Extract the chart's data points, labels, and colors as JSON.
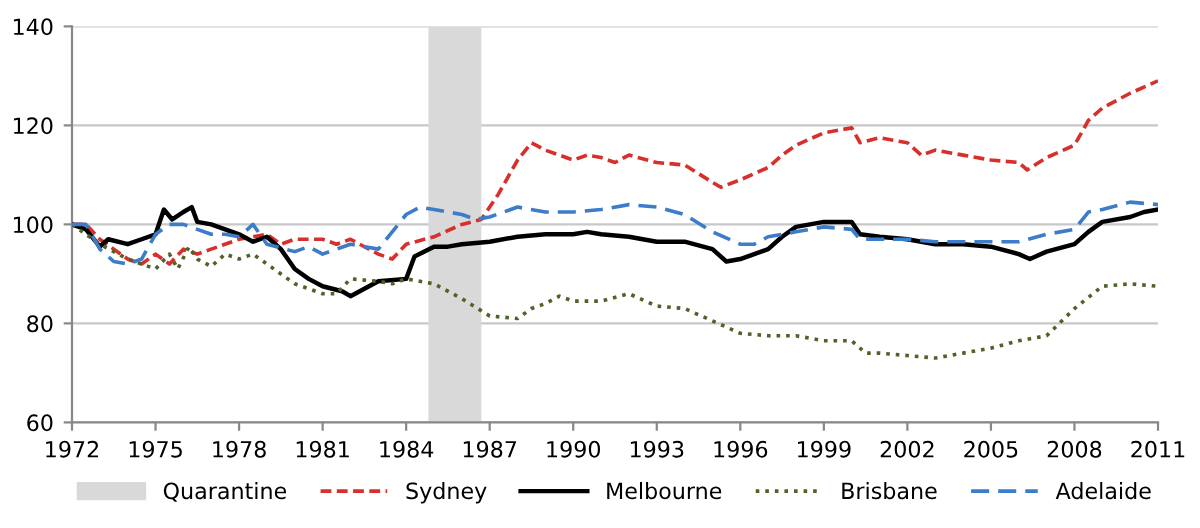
{
  "chart_data": {
    "type": "line",
    "xlim": [
      1972,
      2011
    ],
    "xticks": [
      1972,
      1975,
      1978,
      1981,
      1984,
      1987,
      1990,
      1993,
      1996,
      1999,
      2002,
      2005,
      2008,
      2011
    ],
    "ylim": [
      60,
      140
    ],
    "yticks": [
      60,
      80,
      100,
      120,
      140
    ],
    "grid": "y",
    "legend": "bottom",
    "marker": "none",
    "bands": [
      {
        "axis": "x",
        "from": 1984.8,
        "to": 1986.7,
        "label": "Quarantine",
        "color": "#d9d9d9"
      }
    ],
    "series": [
      {
        "name": "Sydney",
        "color": "#d7302c",
        "line_style": "dashed",
        "x": [
          1972,
          1972.5,
          1973,
          1974,
          1974.5,
          1975,
          1975.5,
          1976,
          1976.5,
          1977,
          1978,
          1979,
          1979.5,
          1980,
          1981,
          1981.5,
          1982,
          1983,
          1983.5,
          1984,
          1985,
          1986,
          1986.7,
          1987.3,
          1988,
          1988.5,
          1989,
          1990,
          1990.5,
          1991,
          1991.5,
          1992,
          1993,
          1994,
          1995,
          1995.3,
          1996,
          1997,
          1997.5,
          1998,
          1999,
          2000,
          2000.3,
          2001,
          2002,
          2002.5,
          2003,
          2004,
          2005,
          2006,
          2006.3,
          2007,
          2008,
          2008.5,
          2009,
          2010,
          2011
        ],
        "values": [
          100,
          100,
          97,
          93,
          92,
          94,
          92,
          95,
          94,
          95,
          97,
          98,
          96,
          97,
          97,
          96,
          97,
          94,
          93,
          96,
          97.5,
          100,
          101,
          106,
          113,
          116.5,
          115,
          113,
          114,
          113.5,
          112.5,
          114,
          112.5,
          112,
          108.5,
          107.5,
          109,
          111.5,
          114,
          116,
          118.5,
          119.5,
          116.5,
          117.5,
          116.5,
          114,
          115,
          114,
          113,
          112.5,
          111,
          113.5,
          116,
          121,
          123.5,
          126.5,
          129
        ]
      },
      {
        "name": "Melbourne",
        "color": "#000000",
        "line_style": "solid",
        "x": [
          1972,
          1972.5,
          1973,
          1973.3,
          1974,
          1974.5,
          1975,
          1975.3,
          1975.6,
          1976,
          1976.3,
          1976.5,
          1977,
          1978,
          1978.5,
          1979,
          1979.5,
          1980,
          1980.5,
          1981,
          1981.7,
          1982,
          1982.5,
          1983,
          1984,
          1984.3,
          1985,
          1985.5,
          1986,
          1987,
          1988,
          1989,
          1990,
          1990.5,
          1991,
          1992,
          1993,
          1994,
          1995,
          1995.5,
          1996,
          1997,
          1997.5,
          1998,
          1999,
          2000,
          2000.3,
          2001,
          2002,
          2003,
          2004,
          2005,
          2006,
          2006.4,
          2007,
          2008,
          2008.5,
          2009,
          2010,
          2010.5,
          2011
        ],
        "values": [
          100,
          99,
          95.5,
          97,
          96,
          97,
          98,
          103,
          101,
          102.5,
          103.5,
          100.5,
          100,
          98,
          96.5,
          97.5,
          95,
          91,
          89,
          87.5,
          86.5,
          85.5,
          87,
          88.5,
          89,
          93.5,
          95.5,
          95.5,
          96,
          96.5,
          97.5,
          98,
          98,
          98.5,
          98,
          97.5,
          96.5,
          96.5,
          95,
          92.5,
          93,
          95,
          97.5,
          99.5,
          100.5,
          100.5,
          98,
          97.5,
          97,
          96,
          96,
          95.5,
          94,
          93,
          94.5,
          96,
          98.5,
          100.5,
          101.5,
          102.5,
          103
        ]
      },
      {
        "name": "Brisbane",
        "color": "#4f6228",
        "line_style": "dotted",
        "x": [
          1972,
          1973,
          1974,
          1974.5,
          1975,
          1975.5,
          1975.8,
          1976.2,
          1976.5,
          1977,
          1977.5,
          1978,
          1978.5,
          1979,
          1980,
          1981,
          1981.5,
          1982,
          1983,
          1983.5,
          1984,
          1985,
          1986,
          1987,
          1988,
          1988.5,
          1989,
          1989.5,
          1990,
          1991,
          1992,
          1993,
          1994,
          1995,
          1996,
          1997,
          1998,
          1999,
          2000,
          2000.5,
          2001,
          2002,
          2003,
          2004,
          2005,
          2006,
          2007,
          2008,
          2009,
          2010,
          2011
        ],
        "values": [
          100,
          96,
          93,
          92,
          91,
          94,
          91,
          95.5,
          93,
          91.5,
          94,
          93,
          94,
          92,
          88,
          86,
          86,
          89,
          88.5,
          88,
          89,
          88,
          85,
          81.5,
          81,
          83,
          84,
          85.5,
          84.5,
          84.5,
          86,
          83.5,
          83,
          80.5,
          78,
          77.5,
          77.5,
          76.5,
          76.5,
          74,
          74,
          73.5,
          73,
          74,
          75,
          76.5,
          77.5,
          83,
          87.5,
          88,
          87.5
        ]
      },
      {
        "name": "Adelaide",
        "color": "#3d7cc9",
        "line_style": "dashed",
        "x": [
          1972,
          1972.5,
          1973,
          1973.5,
          1974,
          1974.5,
          1975,
          1975.5,
          1976,
          1976.5,
          1977,
          1977.5,
          1978,
          1978.5,
          1979,
          1980,
          1980.5,
          1981,
          1982,
          1983,
          1984,
          1984.5,
          1985,
          1986,
          1986.5,
          1987,
          1987.5,
          1988,
          1989,
          1990,
          1991,
          1992,
          1993,
          1994,
          1995,
          1996,
          1996.5,
          1997,
          1998,
          1999,
          2000,
          2000.3,
          2001,
          2002,
          2003,
          2004,
          2005,
          2006,
          2007,
          2008,
          2008.5,
          2009,
          2010,
          2011
        ],
        "values": [
          100,
          100,
          95,
          92.5,
          92,
          93,
          98,
          100,
          100,
          99,
          98,
          98,
          97.5,
          100,
          96,
          94.5,
          95.5,
          94,
          96,
          95,
          102,
          103.5,
          103,
          102,
          101,
          101.5,
          102.5,
          103.5,
          102.5,
          102.5,
          103,
          104,
          103.5,
          102,
          98.5,
          96,
          96,
          97.5,
          98.5,
          99.5,
          99,
          97,
          97,
          97,
          96.5,
          96.5,
          96.5,
          96.5,
          98,
          99,
          102.5,
          103,
          104.5,
          104
        ]
      }
    ]
  }
}
